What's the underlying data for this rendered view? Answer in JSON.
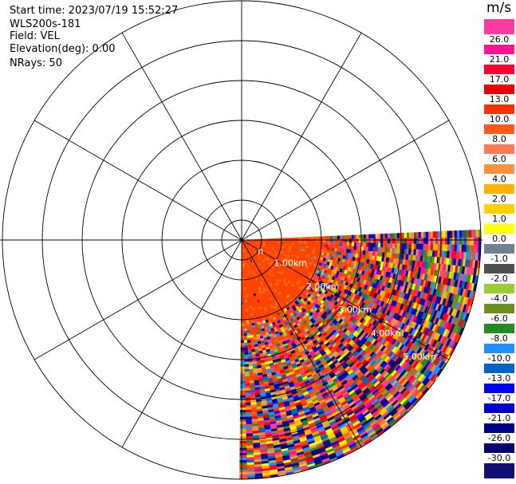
{
  "header": {
    "start_time": "Start time: 2023/07/19 15:52:27",
    "instrument": "WLS200s-181",
    "field": "Field: VEL",
    "elevation": "Elevation(deg): 0.00",
    "nrays": "NRays: 50"
  },
  "colorbar": {
    "unit": "m/s",
    "labels": [
      "26.0",
      "21.0",
      "17.0",
      "13.0",
      "10.0",
      "8.0",
      "6.0",
      "4.0",
      "2.0",
      "1.0",
      "0.0",
      "-1.0",
      "-2.0",
      "-4.0",
      "-6.0",
      "-8.0",
      "-10.0",
      "-13.0",
      "-17.0",
      "-21.0",
      "-26.0",
      "-30.0"
    ],
    "colors": [
      "#ff3aa0",
      "#ff1493",
      "#ff0030",
      "#e80000",
      "#ff3000",
      "#ff5a1e",
      "#ff7a50",
      "#ff9040",
      "#ffb000",
      "#ffd000",
      "#ffff00",
      "#708090",
      "#505050",
      "#9acd32",
      "#6b8e23",
      "#228b22",
      "#1e90ff",
      "#0064c8",
      "#0000ff",
      "#0000c8",
      "#00008b",
      "#000070",
      "#101070"
    ]
  },
  "chart_data": {
    "type": "ppi",
    "title": "",
    "azimuth_start_deg": 90,
    "azimuth_end_deg": 180,
    "n_rays": 50,
    "elevation_deg": 0.0,
    "range_rings_km": [
      "1.00km",
      "2.00km",
      "3.00km",
      "4.00km",
      "5.00km",
      "6"
    ],
    "inner_ring_label": "n",
    "max_range_km": 6.0,
    "range_ring_spacing_km": 1.0,
    "spoke_step_deg": 30,
    "near_field_velocity_ms": 12.0,
    "data_noise_start_km": 2.0
  }
}
